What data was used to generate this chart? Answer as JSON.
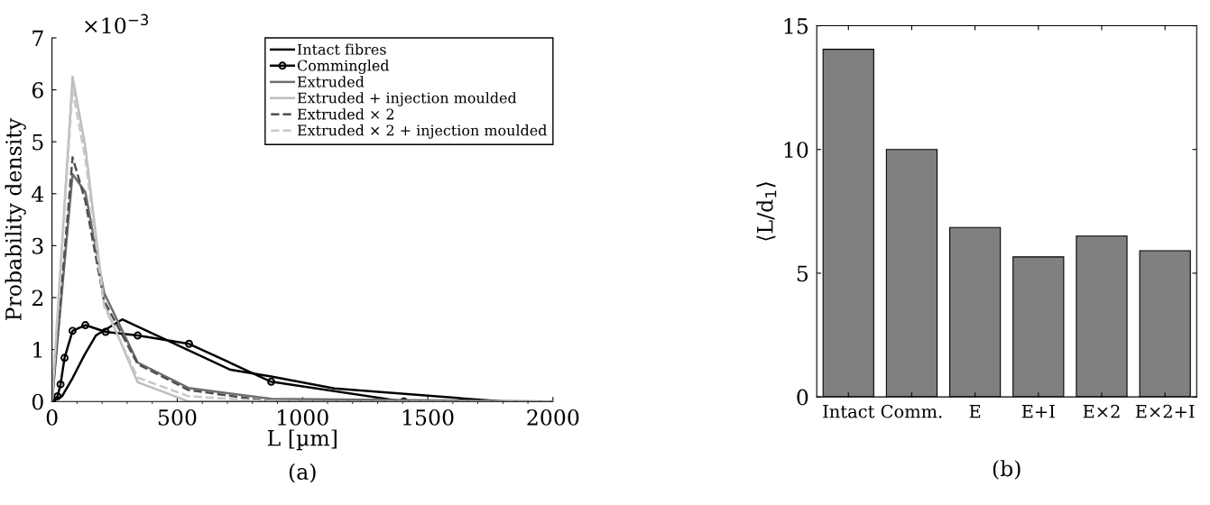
{
  "chart_data": [
    {
      "type": "line",
      "xlabel": "L [µm]",
      "ylabel": "Probability density",
      "annotations": [
        "×10$^{−3}$",
        "(a)"
      ],
      "xlim": [
        0,
        2000
      ],
      "xticks": [
        0,
        500,
        1000,
        1500,
        2000
      ],
      "ylim": [
        0,
        7
      ],
      "yticks": [
        0,
        1,
        2,
        3,
        4,
        5,
        6,
        7
      ],
      "grid": false,
      "legend": "top right",
      "series": [
        {
          "name": "Intact fibres",
          "color": "#000000",
          "line_style": "solid",
          "marker": "none",
          "x": [
            0,
            40,
            82,
            130,
            175,
            280,
            713,
            875,
            1127,
            1800,
            2000
          ],
          "values": [
            0,
            0.1,
            0.45,
            0.9,
            1.27,
            1.58,
            0.61,
            0.48,
            0.25,
            0,
            0
          ]
        },
        {
          "name": "Commingled",
          "color": "#000000",
          "line_style": "solid",
          "marker": "circle",
          "x": [
            0,
            22,
            34,
            50,
            82,
            133,
            214,
            342,
            547,
            875,
            1405
          ],
          "values": [
            0,
            0.1,
            0.33,
            0.84,
            1.36,
            1.47,
            1.34,
            1.27,
            1.11,
            0.38,
            0
          ]
        },
        {
          "name": "Extruded",
          "color": "#6e6e6e",
          "line_style": "solid",
          "marker": "none",
          "x": [
            0,
            82,
            133,
            208,
            342,
            545,
            875,
            2000
          ],
          "values": [
            0,
            4.38,
            4.03,
            2.09,
            0.75,
            0.26,
            0.05,
            0
          ]
        },
        {
          "name": "Extruded + injection moulded",
          "color": "#bdbdbd",
          "line_style": "solid",
          "marker": "none",
          "x": [
            0,
            82,
            133,
            208,
            342,
            545,
            2000
          ],
          "values": [
            0,
            6.25,
            4.9,
            1.89,
            0.37,
            0,
            0
          ]
        },
        {
          "name": "Extruded × 2",
          "color": "#505050",
          "line_style": "dashed",
          "marker": "none",
          "x": [
            0,
            82,
            133,
            208,
            342,
            545,
            875,
            2000
          ],
          "values": [
            0,
            4.7,
            3.86,
            1.94,
            0.72,
            0.22,
            0,
            0
          ]
        },
        {
          "name": "Extruded × 2 + injection moulded",
          "color": "#c8c8c8",
          "line_style": "dashed",
          "marker": "none",
          "x": [
            0,
            82,
            133,
            208,
            342,
            545,
            875,
            2000
          ],
          "values": [
            0,
            6.0,
            4.67,
            1.83,
            0.46,
            0.1,
            0,
            0
          ]
        }
      ]
    },
    {
      "type": "bar",
      "ylabel": "⟨L/d$_{1}$⟩",
      "annotations": [
        "(b)"
      ],
      "categories": [
        "Intact",
        "Comm.",
        "E",
        "E+I",
        "E×2",
        "E×2+I"
      ],
      "values": [
        14.05,
        10.0,
        6.85,
        5.66,
        6.5,
        5.91
      ],
      "color": "#808080",
      "ylim": [
        0,
        15
      ],
      "yticks": [
        0,
        5,
        10,
        15
      ],
      "grid": false,
      "legend": false
    }
  ]
}
